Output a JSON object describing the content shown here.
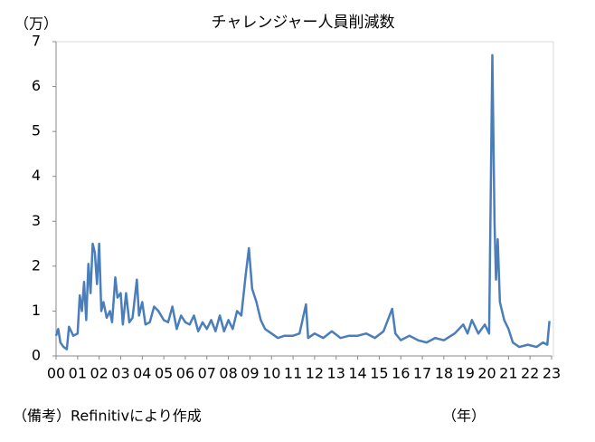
{
  "chart_data": {
    "type": "line",
    "title": "チャレンジャー人員削減数",
    "y_unit": "（万）",
    "x_label": "（年）",
    "note": "（備考）Refinitivにより作成",
    "color": "#4a7ebb",
    "xlim": [
      2000,
      2023
    ],
    "ylim": [
      0,
      7
    ],
    "yticks": [
      0,
      1,
      2,
      3,
      4,
      5,
      6,
      7
    ],
    "xticks": [
      {
        "value": 2000,
        "label": "00"
      },
      {
        "value": 2001,
        "label": "01"
      },
      {
        "value": 2002,
        "label": "02"
      },
      {
        "value": 2003,
        "label": "03"
      },
      {
        "value": 2004,
        "label": "04"
      },
      {
        "value": 2005,
        "label": "05"
      },
      {
        "value": 2006,
        "label": "06"
      },
      {
        "value": 2007,
        "label": "07"
      },
      {
        "value": 2008,
        "label": "08"
      },
      {
        "value": 2009,
        "label": "09"
      },
      {
        "value": 2010,
        "label": "10"
      },
      {
        "value": 2011,
        "label": "11"
      },
      {
        "value": 2012,
        "label": "12"
      },
      {
        "value": 2013,
        "label": "13"
      },
      {
        "value": 2014,
        "label": "14"
      },
      {
        "value": 2015,
        "label": "15"
      },
      {
        "value": 2016,
        "label": "16"
      },
      {
        "value": 2017,
        "label": "17"
      },
      {
        "value": 2018,
        "label": "18"
      },
      {
        "value": 2019,
        "label": "19"
      },
      {
        "value": 2020,
        "label": "20"
      },
      {
        "value": 2021,
        "label": "21"
      },
      {
        "value": 2022,
        "label": "22"
      },
      {
        "value": 2023,
        "label": "23"
      }
    ],
    "x": [
      2000,
      2000.1,
      2000.2,
      2000.35,
      2000.5,
      2000.6,
      2000.8,
      2001.0,
      2001.1,
      2001.2,
      2001.3,
      2001.4,
      2001.5,
      2001.6,
      2001.7,
      2001.8,
      2001.9,
      2002.0,
      2002.1,
      2002.2,
      2002.35,
      2002.5,
      2002.6,
      2002.75,
      2002.85,
      2003.0,
      2003.1,
      2003.25,
      2003.4,
      2003.55,
      2003.75,
      2003.85,
      2004.0,
      2004.15,
      2004.35,
      2004.55,
      2004.75,
      2005.0,
      2005.2,
      2005.4,
      2005.6,
      2005.8,
      2006.0,
      2006.2,
      2006.4,
      2006.6,
      2006.8,
      2007.0,
      2007.2,
      2007.4,
      2007.6,
      2007.8,
      2008.0,
      2008.2,
      2008.4,
      2008.6,
      2008.8,
      2008.95,
      2009.1,
      2009.3,
      2009.5,
      2009.7,
      2010.0,
      2010.3,
      2010.6,
      2011.0,
      2011.3,
      2011.6,
      2011.7,
      2012.0,
      2012.4,
      2012.8,
      2013.2,
      2013.6,
      2014.0,
      2014.4,
      2014.8,
      2015.2,
      2015.6,
      2015.75,
      2016.0,
      2016.4,
      2016.8,
      2017.2,
      2017.6,
      2018.0,
      2018.5,
      2018.9,
      2019.1,
      2019.3,
      2019.6,
      2019.9,
      2020.1,
      2020.25,
      2020.35,
      2020.42,
      2020.5,
      2020.6,
      2020.8,
      2021.0,
      2021.2,
      2021.5,
      2021.9,
      2022.3,
      2022.6,
      2022.8,
      2022.9
    ],
    "values": [
      0.45,
      0.6,
      0.3,
      0.2,
      0.15,
      0.65,
      0.45,
      0.5,
      1.35,
      1.0,
      1.65,
      0.8,
      2.05,
      1.4,
      2.5,
      2.3,
      1.6,
      2.5,
      1.0,
      1.2,
      0.85,
      1.0,
      0.75,
      1.75,
      1.3,
      1.4,
      0.7,
      1.4,
      0.75,
      0.85,
      1.7,
      0.9,
      1.2,
      0.7,
      0.75,
      1.1,
      1.0,
      0.8,
      0.75,
      1.1,
      0.6,
      0.9,
      0.75,
      0.7,
      0.9,
      0.55,
      0.75,
      0.6,
      0.8,
      0.55,
      0.9,
      0.55,
      0.8,
      0.6,
      1.0,
      0.9,
      1.8,
      2.4,
      1.5,
      1.2,
      0.8,
      0.6,
      0.5,
      0.4,
      0.45,
      0.45,
      0.5,
      1.15,
      0.4,
      0.5,
      0.4,
      0.55,
      0.4,
      0.45,
      0.45,
      0.5,
      0.4,
      0.55,
      1.05,
      0.5,
      0.35,
      0.45,
      0.35,
      0.3,
      0.4,
      0.35,
      0.5,
      0.7,
      0.5,
      0.8,
      0.5,
      0.7,
      0.5,
      6.7,
      3.0,
      1.7,
      2.6,
      1.2,
      0.8,
      0.6,
      0.3,
      0.2,
      0.25,
      0.2,
      0.3,
      0.25,
      0.78
    ]
  }
}
